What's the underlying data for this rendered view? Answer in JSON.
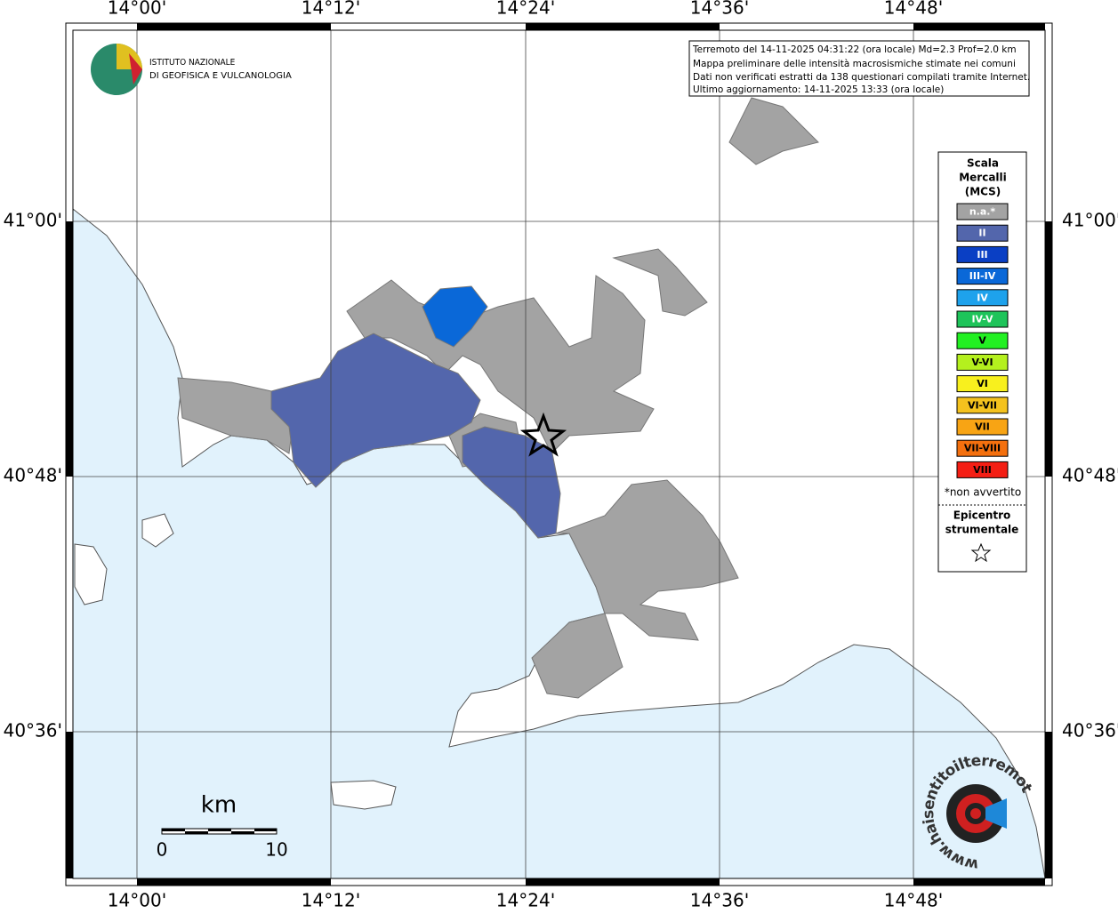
{
  "map": {
    "lon_labels": [
      "14°00'",
      "14°12'",
      "14°24'",
      "14°36'",
      "14°48'"
    ],
    "lat_labels": [
      "41°00'",
      "40°48'",
      "40°36'"
    ]
  },
  "logo": {
    "line1": "ISTITUTO NAZIONALE",
    "line2": "DI GEOFISICA E VULCANOLOGIA"
  },
  "info_box": {
    "lines": [
      "Terremoto del 14-11-2025 04:31:22 (ora locale) Md=2.3 Prof=2.0 km",
      "Mappa preliminare delle intensità macrosismiche stimate nei comuni",
      "Dati non verificati estratti da 138 questionari compilati tramite Internet.",
      "Ultimo aggiornamento: 14-11-2025 13:33 (ora locale)"
    ]
  },
  "legend": {
    "title": [
      "Scala",
      "Mercalli",
      "(MCS)"
    ],
    "items": [
      {
        "label": "n.a.*",
        "color": "#a3a3a3"
      },
      {
        "label": "II",
        "color": "#5366ac"
      },
      {
        "label": "III",
        "color": "#0a3fc4"
      },
      {
        "label": "III-IV",
        "color": "#0a68d8"
      },
      {
        "label": "IV",
        "color": "#1ea2ec"
      },
      {
        "label": "IV-V",
        "color": "#1ec45a"
      },
      {
        "label": "V",
        "color": "#22f022"
      },
      {
        "label": "V-VI",
        "color": "#b4f01e"
      },
      {
        "label": "VI",
        "color": "#f8f01e"
      },
      {
        "label": "VI-VII",
        "color": "#f4c21e"
      },
      {
        "label": "VII",
        "color": "#f8a414"
      },
      {
        "label": "VII-VIII",
        "color": "#f4700e"
      },
      {
        "label": "VIII",
        "color": "#f41e14"
      }
    ],
    "note": "*non avvertito",
    "epicenter_title": [
      "Epicentro",
      "strumentale"
    ]
  },
  "scale_bar": {
    "unit": "km",
    "labels": [
      "0",
      "10"
    ]
  },
  "watermark": "www.haisentitoilterremoto.it"
}
